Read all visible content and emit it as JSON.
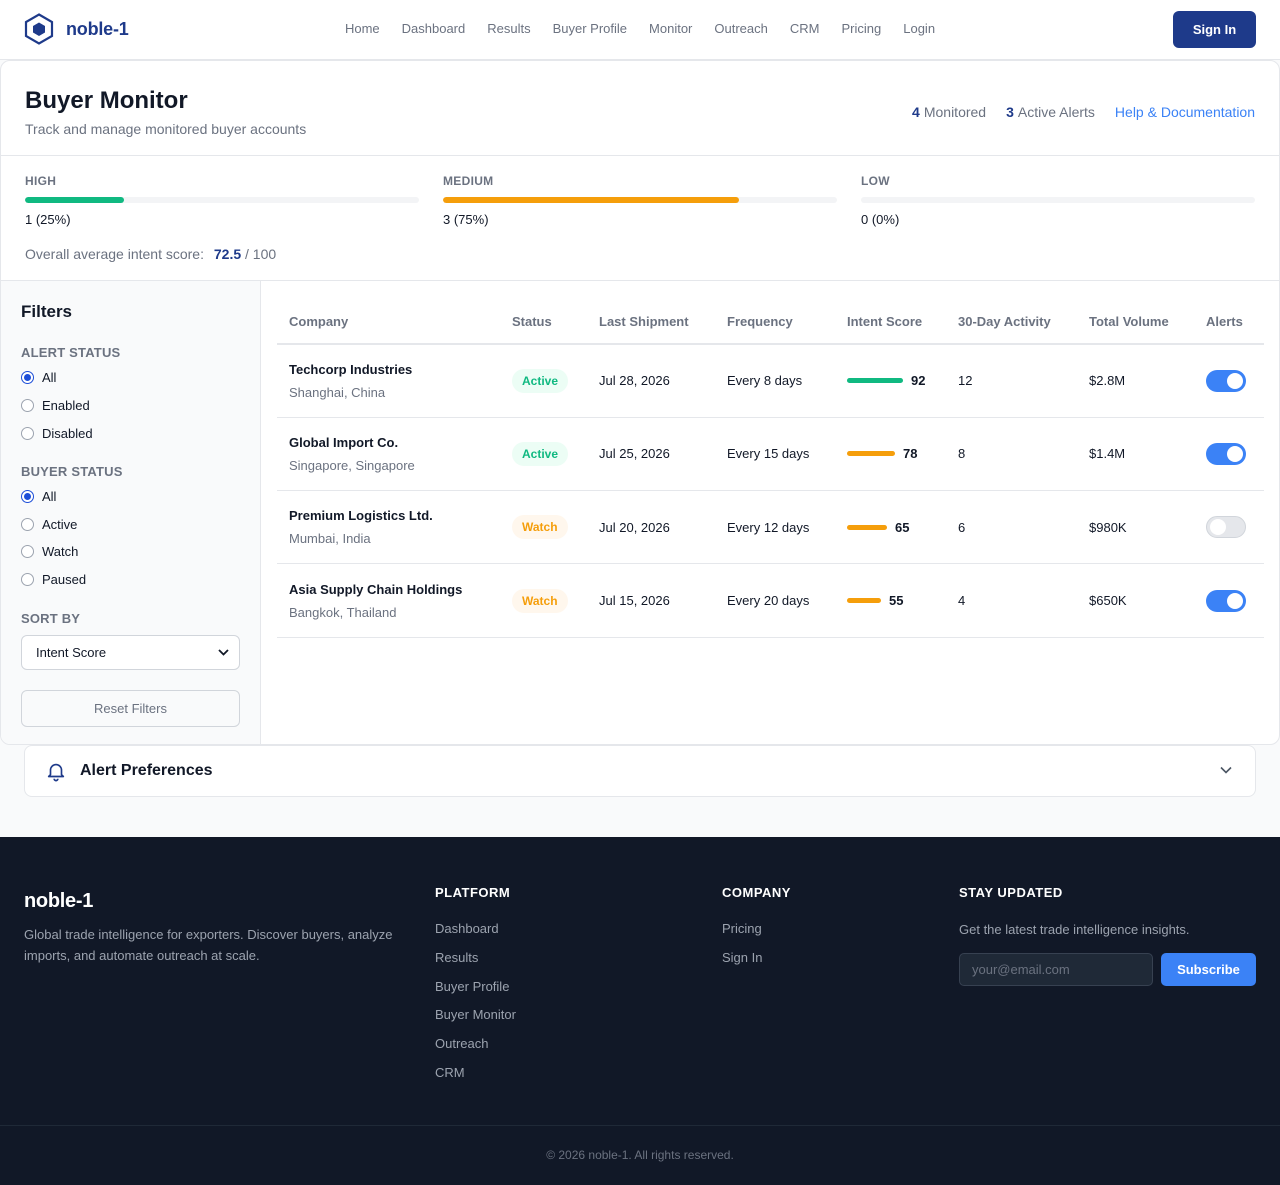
{
  "brand": {
    "name": "noble-1"
  },
  "nav": {
    "links": [
      "Home",
      "Dashboard",
      "Results",
      "Buyer Profile",
      "Monitor",
      "Outreach",
      "CRM",
      "Pricing",
      "Login"
    ],
    "signin_label": "Sign In"
  },
  "header": {
    "title": "Buyer Monitor",
    "subtitle": "Track and manage monitored buyer accounts",
    "monitored_count": "4",
    "monitored_label": "Monitored",
    "alerts_count": "3",
    "alerts_label": "Active Alerts",
    "help_label": "Help & Documentation"
  },
  "distribution": {
    "items": [
      {
        "label": "HIGH",
        "value_text": "1 (25%)",
        "fraction": 0.25,
        "color": "#10b981"
      },
      {
        "label": "MEDIUM",
        "value_text": "3 (75%)",
        "fraction": 0.75,
        "color": "#f59e0b"
      },
      {
        "label": "LOW",
        "value_text": "0 (0%)",
        "fraction": 0.0,
        "color": "#e5e7eb"
      }
    ],
    "avg_label": "Overall average intent score:",
    "avg_value": "72.5",
    "avg_max": "/ 100"
  },
  "filters": {
    "title": "Filters",
    "alert_status": {
      "label": "ALERT STATUS",
      "options": [
        "All",
        "Enabled",
        "Disabled"
      ],
      "selected": 0
    },
    "buyer_status": {
      "label": "BUYER STATUS",
      "options": [
        "All",
        "Active",
        "Watch",
        "Paused"
      ],
      "selected": 0
    },
    "sort": {
      "label": "SORT BY",
      "value": "Intent Score"
    },
    "reset_label": "Reset Filters"
  },
  "table": {
    "columns": [
      "Company",
      "Status",
      "Last Shipment",
      "Frequency",
      "Intent Score",
      "30-Day Activity",
      "Total Volume",
      "Alerts"
    ],
    "rows": [
      {
        "company": "Techcorp Industries",
        "location": "Shanghai, China",
        "status": "Active",
        "last_shipment": "Jul 28, 2026",
        "frequency": "Every 8 days",
        "score": "92",
        "activity": "12",
        "volume": "$2.8M",
        "alert_on": true
      },
      {
        "company": "Global Import Co.",
        "location": "Singapore, Singapore",
        "status": "Active",
        "last_shipment": "Jul 25, 2026",
        "frequency": "Every 15 days",
        "score": "78",
        "activity": "8",
        "volume": "$1.4M",
        "alert_on": true
      },
      {
        "company": "Premium Logistics Ltd.",
        "location": "Mumbai, India",
        "status": "Watch",
        "last_shipment": "Jul 20, 2026",
        "frequency": "Every 12 days",
        "score": "65",
        "activity": "6",
        "volume": "$980K",
        "alert_on": false
      },
      {
        "company": "Asia Supply Chain Holdings",
        "location": "Bangkok, Thailand",
        "status": "Watch",
        "last_shipment": "Jul 15, 2026",
        "frequency": "Every 20 days",
        "score": "55",
        "activity": "4",
        "volume": "$650K",
        "alert_on": true
      }
    ]
  },
  "alert_preferences": {
    "title": "Alert Preferences",
    "icon": "bell-icon"
  },
  "footer": {
    "brand": "noble-1",
    "description": "Global trade intelligence for exporters. Discover buyers, analyze imports, and automate outreach at scale.",
    "platform": {
      "heading": "PLATFORM",
      "links": [
        "Dashboard",
        "Results",
        "Buyer Profile",
        "Buyer Monitor",
        "Outreach",
        "CRM"
      ]
    },
    "company": {
      "heading": "COMPANY",
      "links": [
        "Pricing",
        "Sign In"
      ]
    },
    "stay": {
      "heading": "STAY UPDATED",
      "text": "Get the latest trade intelligence insights.",
      "email_placeholder": "your@email.com",
      "subscribe_label": "Subscribe"
    },
    "copyright": "© 2026 noble-1. All rights reserved."
  },
  "colors": {
    "brand": "#1e3a8a",
    "accent": "#3b82f6",
    "high": "#10b981",
    "medium": "#f59e0b"
  }
}
